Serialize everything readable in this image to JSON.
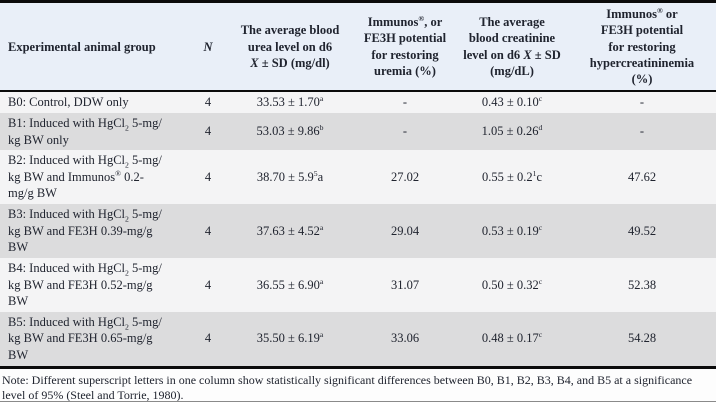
{
  "table": {
    "columns": [
      {
        "label": "Experimental animal group"
      },
      {
        "label": "*N*"
      },
      {
        "label": "The average blood\nurea level on d6\n*X* ± SD (mg/dl)"
      },
      {
        "label": "Immunos^®, or\nFE3H potential\nfor restoring\nuremia (%)"
      },
      {
        "label": "The average\nblood creatinine\nlevel on d6 *X* ± SD\n(mg/dL)"
      },
      {
        "label": "Immunos^® or\nFE3H potential\nfor restoring\nhypercreatininemia\n(%)"
      }
    ],
    "rows": [
      {
        "id": "B0",
        "cells": [
          "B0: Control, DDW only",
          "4",
          "33.53 ± 1.70^a",
          "-",
          "0.43 ± 0.10^c",
          "-"
        ]
      },
      {
        "id": "B1",
        "cells": [
          "B1: Induced with HgCl_2 5-mg/\nkg BW only",
          "4",
          "53.03 ± 9.86^b",
          "-",
          "1.05 ± 0.26^d",
          "-"
        ]
      },
      {
        "id": "B2",
        "cells": [
          "B2: Induced with HgCl_2 5-mg/\nkg BW and Immunos^® 0.2-\nmg/g BW",
          "4",
          "38.70 ± 5.9^5a",
          "27.02",
          "0.55 ± 0.2^1c",
          "47.62"
        ]
      },
      {
        "id": "B3",
        "cells": [
          "B3: Induced with HgCl_2 5-mg/\nkg BW and FE3H 0.39-mg/g\nBW",
          "4",
          "37.63 ± 4.52^a",
          "29.04",
          "0.53 ± 0.19^c",
          "49.52"
        ]
      },
      {
        "id": "B4",
        "cells": [
          "B4: Induced with HgCl_2 5-mg/\nkg BW and FE3H 0.52-mg/g\nBW",
          "4",
          "36.55 ± 6.90^a",
          "31.07",
          "0.50 ± 0.32^c",
          "52.38"
        ]
      },
      {
        "id": "B5",
        "cells": [
          "B5: Induced with HgCl_2 5-mg/\nkg BW and FE3H 0.65-mg/g\nBW",
          "4",
          "35.50 ± 6.19^a",
          "33.06",
          "0.48 ± 0.17^c",
          "54.28"
        ]
      }
    ]
  },
  "note": "Note: Different superscript letters in one column show statistically significant differences between B0, B1, B2, B3, B4, and B5 at a significance level of 95% (Steel and Torrie, 1980).",
  "colors": {
    "header_bg": "#e9eff8",
    "row_light": "#f4f4f5",
    "row_dark": "#dcdcdd",
    "border": "#0b0b0b",
    "text": "#20242f"
  }
}
